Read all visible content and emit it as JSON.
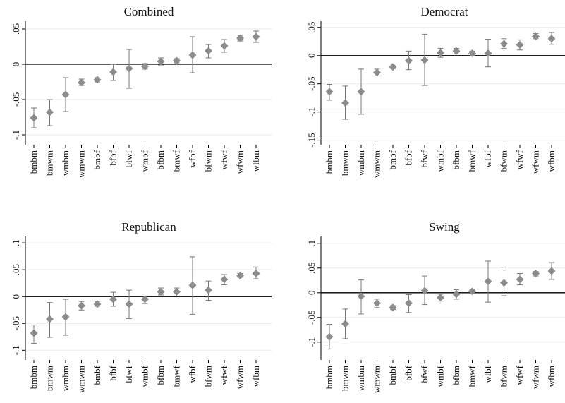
{
  "chart_data": [
    {
      "type": "dot",
      "title": "Combined",
      "color": "#8c8c8c",
      "hline": 0,
      "categories": [
        "bmbm",
        "bmwm",
        "wmbm",
        "wmwm",
        "bmbf",
        "bfbf",
        "bfwf",
        "wmbf",
        "bfbm",
        "bmwf",
        "wfbf",
        "bfwm",
        "wfwf",
        "wfwm",
        "wfbm"
      ],
      "values": [
        -0.076,
        -0.068,
        -0.043,
        -0.026,
        -0.022,
        -0.011,
        -0.006,
        -0.003,
        0.004,
        0.005,
        0.013,
        0.019,
        0.026,
        0.037,
        0.039
      ],
      "lower": [
        -0.09,
        -0.087,
        -0.067,
        -0.03,
        -0.025,
        -0.023,
        -0.034,
        -0.007,
        -0.001,
        0.002,
        -0.012,
        0.009,
        0.017,
        0.033,
        0.031
      ],
      "upper": [
        -0.062,
        -0.05,
        -0.019,
        -0.021,
        -0.019,
        0,
        0.021,
        0.001,
        0.009,
        0.008,
        0.039,
        0.028,
        0.035,
        0.041,
        0.047
      ],
      "ylim": [
        -0.114,
        0.061
      ],
      "yticks": [
        {
          "value": -0.1,
          "label": "-.1"
        },
        {
          "value": -0.05,
          "label": "-.05"
        },
        0,
        {
          "value": 0.05,
          "label": ".05"
        }
      ]
    },
    {
      "type": "dot",
      "title": "Democrat",
      "color": "#8c8c8c",
      "hline": 0,
      "categories": [
        "bmbm",
        "bmwm",
        "wmbm",
        "wmwm",
        "bmbf",
        "bfbf",
        "bfwf",
        "wmbf",
        "bfbm",
        "bmwf",
        "wfbf",
        "bfwm",
        "wfwf",
        "wfwm",
        "wfbm"
      ],
      "values": [
        -0.064,
        -0.084,
        -0.064,
        -0.03,
        -0.02,
        -0.009,
        -0.008,
        0.005,
        0.008,
        0.004,
        0.004,
        0.021,
        0.019,
        0.034,
        0.03
      ],
      "lower": [
        -0.079,
        -0.113,
        -0.104,
        -0.036,
        -0.023,
        -0.025,
        -0.053,
        -0.003,
        0.003,
        0,
        -0.02,
        0.013,
        0.01,
        0.03,
        0.02
      ],
      "upper": [
        -0.051,
        -0.054,
        -0.024,
        -0.024,
        -0.018,
        0.008,
        0.038,
        0.013,
        0.013,
        0.008,
        0.029,
        0.03,
        0.028,
        0.039,
        0.041
      ],
      "ylim": [
        -0.158,
        0.061
      ],
      "yticks": [
        {
          "value": -0.15,
          "label": "-.15"
        },
        {
          "value": -0.1,
          "label": "-.1"
        },
        {
          "value": -0.05,
          "label": "-.05"
        },
        0,
        {
          "value": 0.05,
          "label": ".05"
        }
      ]
    },
    {
      "type": "dot",
      "title": "Republican",
      "color": "#8c8c8c",
      "hline": 0,
      "categories": [
        "bmbm",
        "bmwm",
        "wmbm",
        "wmwm",
        "bmbf",
        "bfbf",
        "bfwf",
        "wmbf",
        "bfbm",
        "bmwf",
        "wfbf",
        "bfwm",
        "wfwf",
        "wfwm",
        "wfbm"
      ],
      "values": [
        -0.068,
        -0.042,
        -0.038,
        -0.017,
        -0.014,
        -0.005,
        -0.014,
        -0.005,
        0.009,
        0.009,
        0.021,
        0.012,
        0.032,
        0.039,
        0.043
      ],
      "lower": [
        -0.087,
        -0.076,
        -0.072,
        -0.025,
        -0.018,
        -0.018,
        -0.041,
        -0.013,
        0.003,
        0.001,
        -0.033,
        -0.007,
        0.022,
        0.036,
        0.033
      ],
      "upper": [
        -0.053,
        -0.011,
        -0.005,
        -0.009,
        -0.01,
        0.008,
        0.012,
        0.001,
        0.016,
        0.016,
        0.074,
        0.029,
        0.041,
        0.043,
        0.055
      ],
      "ylim": [
        -0.118,
        0.112
      ],
      "yticks": [
        {
          "value": -0.1,
          "label": "-.1"
        },
        {
          "value": -0.05,
          "label": "-.05"
        },
        0,
        {
          "value": 0.05,
          "label": ".05"
        },
        {
          "value": 0.1,
          "label": ".1"
        }
      ]
    },
    {
      "type": "dot",
      "title": "Swing",
      "color": "#8c8c8c",
      "hline": 0,
      "categories": [
        "bmbm",
        "bmwm",
        "wmbm",
        "wmwm",
        "bmbf",
        "bfbf",
        "bfwf",
        "wmbf",
        "bfbm",
        "bmwf",
        "wfbf",
        "bfwm",
        "wfwf",
        "wfwm",
        "wfbm"
      ],
      "values": [
        -0.089,
        -0.063,
        -0.007,
        -0.021,
        -0.03,
        -0.021,
        0.004,
        -0.01,
        -0.003,
        0.003,
        0.023,
        0.02,
        0.027,
        0.039,
        0.044
      ],
      "lower": [
        -0.114,
        -0.093,
        -0.043,
        -0.03,
        -0.034,
        -0.04,
        -0.024,
        -0.017,
        -0.013,
        -0.001,
        -0.019,
        -0.006,
        0.016,
        0.034,
        0.027
      ],
      "upper": [
        -0.064,
        -0.033,
        0.026,
        -0.013,
        -0.026,
        -0.004,
        0.034,
        -0.003,
        0.006,
        0.007,
        0.064,
        0.046,
        0.039,
        0.043,
        0.061
      ],
      "ylim": [
        -0.136,
        0.114
      ],
      "yticks": [
        {
          "value": -0.1,
          "label": "-.1"
        },
        {
          "value": -0.05,
          "label": "-.05"
        },
        0,
        {
          "value": 0.05,
          "label": ".05"
        },
        {
          "value": 0.1,
          "label": ".1"
        }
      ]
    }
  ]
}
